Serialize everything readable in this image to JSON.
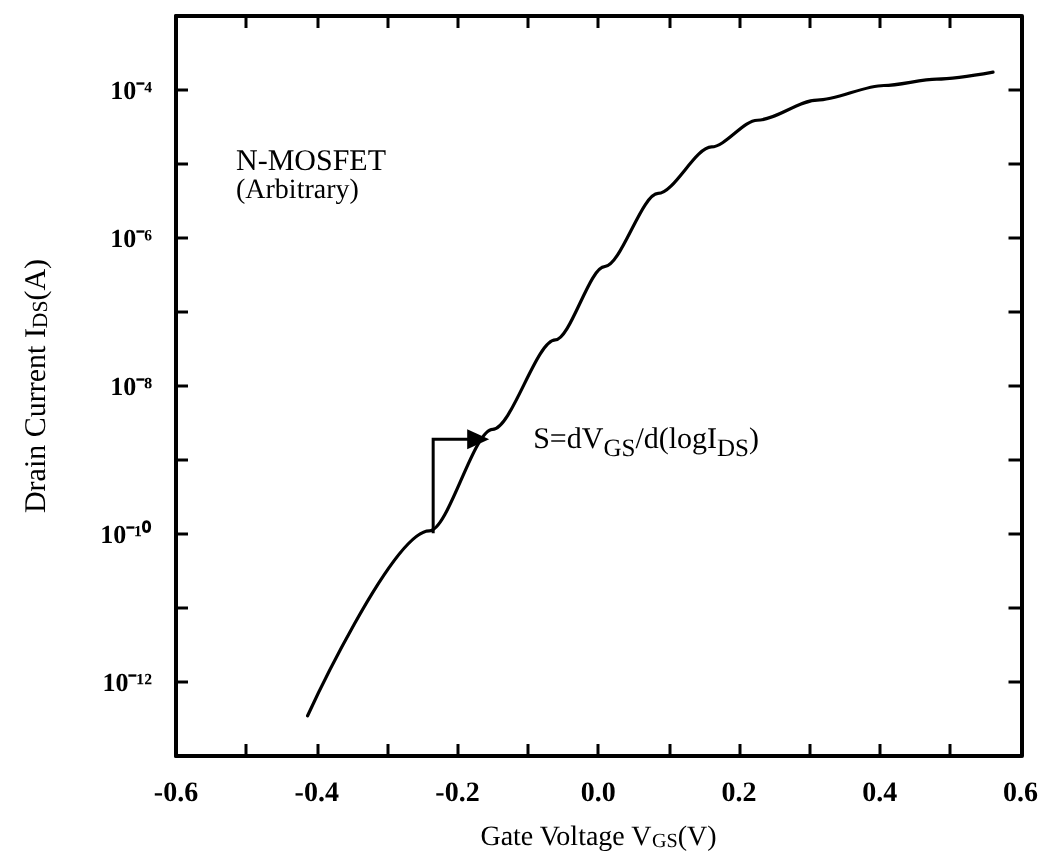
{
  "chart_data": {
    "type": "line",
    "xlabel": "Gate Voltage V$_{GS}$(V)",
    "ylabel": "Drain Current I$_{DS}$(A)",
    "annotations": [
      "N-MOSFET",
      "(Arbitrary)",
      {
        "text": "S=dV$_{GS}$/d(logI$_{DS}$)",
        "x": -0.155,
        "y": 1.9e-09
      }
    ],
    "series": [
      {
        "color": "#000000",
        "x": [
          -0.413,
          -0.24,
          -0.15,
          -0.061,
          0.009,
          0.085,
          0.161,
          0.226,
          0.311,
          0.406,
          0.481,
          0.561
        ],
        "values": [
          3.5e-13,
          1.1e-10,
          2.6e-09,
          4.2e-08,
          4.1e-07,
          4e-06,
          1.7e-05,
          3.9e-05,
          7.3e-05,
          0.000115,
          0.00014,
          0.000174
        ]
      }
    ],
    "log": "y",
    "xlim": [
      -0.6,
      0.6
    ],
    "xticks": [
      -0.6,
      {
        "value": -0.5,
        "label": null
      },
      -0.4,
      {
        "value": -0.3,
        "label": null
      },
      -0.2,
      {
        "value": -0.1,
        "label": null
      },
      {
        "value": 0,
        "label": "0.0"
      },
      {
        "value": 0.1,
        "label": null
      },
      0.2,
      {
        "value": 0.3,
        "label": null
      },
      0.4,
      {
        "value": 0.5,
        "label": null
      },
      0.6
    ],
    "ylim": [
      1e-13,
      0.001
    ],
    "yticks": [
      {
        "value": 1e-12,
        "label": "10⁻¹²"
      },
      {
        "value": 1e-11,
        "label": null
      },
      {
        "value": 1e-10,
        "label": "10⁻¹⁰"
      },
      {
        "value": 1e-09,
        "label": null
      },
      {
        "value": 1e-08,
        "label": "10⁻⁸"
      },
      {
        "value": 1e-07,
        "label": null
      },
      {
        "value": 1e-06,
        "label": "10⁻⁶"
      },
      {
        "value": 1e-05,
        "label": null
      },
      {
        "value": 0.0001,
        "label": "10⁻⁴"
      }
    ],
    "marker": "none",
    "line_style": "solid"
  }
}
